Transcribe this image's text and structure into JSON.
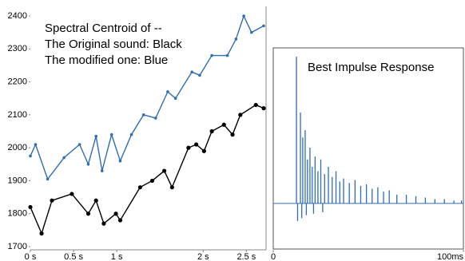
{
  "chart_data": [
    {
      "type": "line",
      "annotations": [
        "Spectral Centroid of --",
        "The Original sound: Black",
        "The modified one:    Blue"
      ],
      "xlim": [
        0,
        2.7
      ],
      "xticks": [
        {
          "value": 0,
          "label": "0 s"
        },
        {
          "value": 0.5,
          "label": "0.5 s"
        },
        {
          "value": 1,
          "label": "1 s"
        },
        {
          "value": 2,
          "label": "2 s"
        },
        {
          "value": 2.5,
          "label": "2.5 s"
        }
      ],
      "ylim": [
        1700,
        2400
      ],
      "yticks": [
        1700,
        1800,
        1900,
        2000,
        2100,
        2200,
        2300,
        2400
      ],
      "series": [
        {
          "color": "#2f6db5",
          "x": [
            0,
            0.06,
            0.2,
            0.39,
            0.57,
            0.67,
            0.76,
            0.83,
            0.94,
            1.04,
            1.17,
            1.31,
            1.45,
            1.59,
            1.68,
            1.87,
            1.96,
            2.1,
            2.28,
            2.38,
            2.47,
            2.56,
            2.7
          ],
          "values": [
            1975,
            2010,
            1905,
            1970,
            2010,
            1950,
            2035,
            1930,
            2040,
            1960,
            2040,
            2100,
            2090,
            2170,
            2150,
            2230,
            2220,
            2280,
            2280,
            2330,
            2400,
            2350,
            2370
          ]
        },
        {
          "color": "#000000",
          "x": [
            0,
            0.13,
            0.25,
            0.48,
            0.67,
            0.76,
            0.85,
            0.99,
            1.04,
            1.27,
            1.41,
            1.55,
            1.64,
            1.83,
            1.92,
            2.01,
            2.1,
            2.24,
            2.34,
            2.43,
            2.61,
            2.7
          ],
          "values": [
            1820,
            1740,
            1840,
            1860,
            1800,
            1840,
            1770,
            1800,
            1780,
            1880,
            1900,
            1930,
            1880,
            2000,
            2010,
            1990,
            2050,
            2070,
            2040,
            2100,
            2130,
            2120
          ]
        }
      ]
    },
    {
      "type": "stem",
      "title": "Best Impulse Response",
      "color": "#2f6db5",
      "xlim": [
        0,
        100
      ],
      "xticks": [
        {
          "value": 0,
          "label": "0"
        },
        {
          "value": 100,
          "label": "100ms"
        }
      ],
      "ylim": [
        -0.3,
        1.05
      ],
      "x": [
        12.2,
        12.8,
        14.3,
        15.0,
        15.5,
        16.8,
        17.4,
        18,
        19.3,
        20.5,
        21.2,
        22,
        23.5,
        25,
        26,
        27,
        29,
        31,
        33,
        35,
        37,
        40,
        43,
        46,
        49,
        52,
        55,
        58,
        61,
        65,
        70,
        75,
        80,
        85,
        90,
        95,
        99
      ],
      "values": [
        1.0,
        -0.12,
        0.62,
        -0.1,
        0.45,
        0.5,
        -0.08,
        0.3,
        0.38,
        0.25,
        -0.07,
        0.32,
        0.22,
        0.3,
        -0.06,
        0.2,
        0.25,
        0.18,
        0.22,
        0.15,
        0.17,
        0.14,
        0.16,
        0.12,
        0.13,
        0.1,
        0.11,
        0.08,
        0.09,
        0.06,
        0.06,
        0.05,
        0.04,
        0.03,
        0.03,
        0.02,
        0.02
      ]
    }
  ]
}
